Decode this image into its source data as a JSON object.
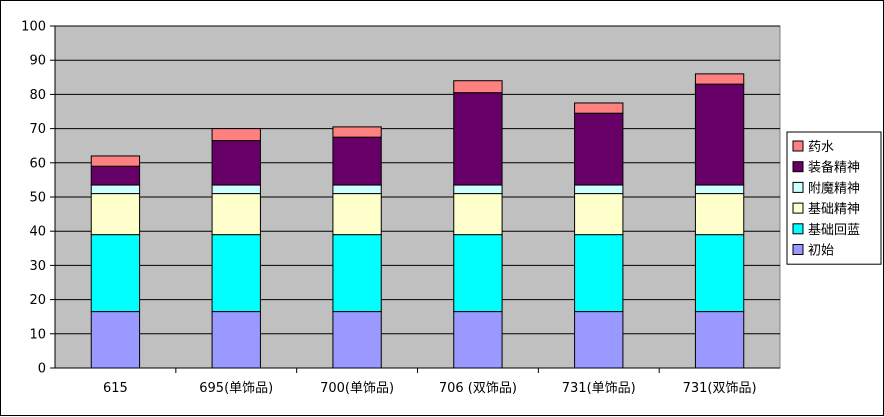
{
  "chart_data": {
    "type": "bar",
    "stacked": true,
    "categories": [
      "615",
      "695(单饰品)",
      "700(单饰品)",
      "706 (双饰品)",
      "731(单饰品)",
      "731(双饰品)"
    ],
    "series": [
      {
        "name": "初始",
        "color": "#9999ff",
        "values": [
          16.5,
          16.5,
          16.5,
          16.5,
          16.5,
          16.5
        ]
      },
      {
        "name": "基础回蓝",
        "color": "#00ffff",
        "values": [
          22.5,
          22.5,
          22.5,
          22.5,
          22.5,
          22.5
        ]
      },
      {
        "name": "基础精神",
        "color": "#ffffcc",
        "values": [
          12,
          12,
          12,
          12,
          12,
          12
        ]
      },
      {
        "name": "附魔精神",
        "color": "#ccffff",
        "values": [
          2.5,
          2.5,
          2.5,
          2.5,
          2.5,
          2.5
        ]
      },
      {
        "name": "装备精神",
        "color": "#660066",
        "values": [
          5.5,
          13,
          14,
          27,
          21,
          29.5
        ]
      },
      {
        "name": "药水",
        "color": "#ff8080",
        "values": [
          3,
          3.5,
          3,
          3.5,
          3,
          3
        ]
      }
    ],
    "ylim": [
      0,
      100
    ],
    "yticks": [
      0,
      10,
      20,
      30,
      40,
      50,
      60,
      70,
      80,
      90,
      100
    ],
    "grid": true,
    "plot_background": "#c0c0c0",
    "legend_position": "right",
    "title": "",
    "xlabel": "",
    "ylabel": ""
  }
}
